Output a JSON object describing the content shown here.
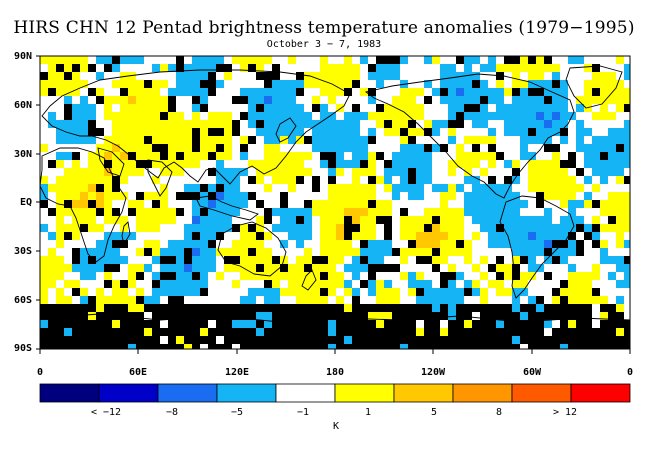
{
  "title": "HIRS CHN 12 Pentad brightness temperature anomalies (1979−1995)",
  "subtitle": "October 3 − 7, 1983",
  "lat_labels": [
    "90N",
    "60N",
    "30N",
    "EQ",
    "30S",
    "60S",
    "90S"
  ],
  "lon_labels": [
    "0",
    "60E",
    "120E",
    "180",
    "120W",
    "60W",
    "0"
  ],
  "colorbar": {
    "colors": [
      "#00007f",
      "#0000c8",
      "#1a6cf0",
      "#14b4f5",
      "#ffffff",
      "#ffff00",
      "#ffc800",
      "#ff9600",
      "#ff5a00",
      "#ff0000"
    ],
    "labels": [
      "< −12",
      "−8",
      "−5",
      "−1",
      "1",
      "5",
      "8",
      "> 12"
    ],
    "unit": "K"
  },
  "legend_colors": {
    "missing": "#000000",
    "land_outline": "#000000"
  }
}
